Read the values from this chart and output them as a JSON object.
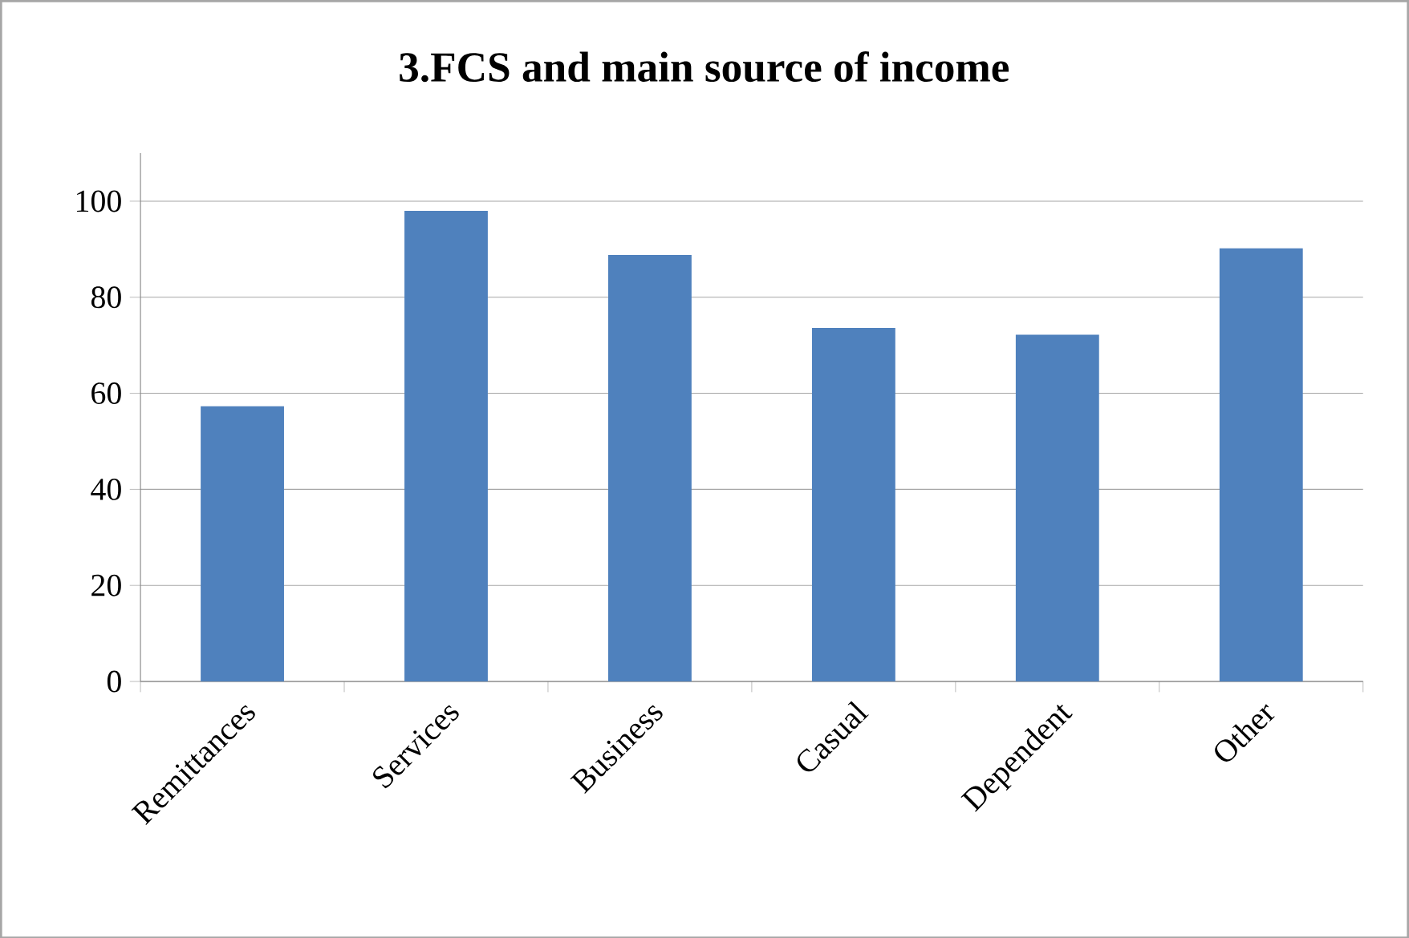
{
  "chart_data": {
    "type": "bar",
    "title": "3.FCS and main source of income",
    "categories": [
      "Remittances",
      "Services",
      "Business",
      "Casual",
      "Dependent",
      "Other"
    ],
    "values": [
      57.3,
      98,
      88.8,
      73.6,
      72.2,
      90.2
    ],
    "color": "#4f81bd",
    "ylim": [
      0,
      110
    ],
    "yticks": [
      0,
      20,
      40,
      60,
      80,
      100
    ],
    "grid": "y"
  }
}
